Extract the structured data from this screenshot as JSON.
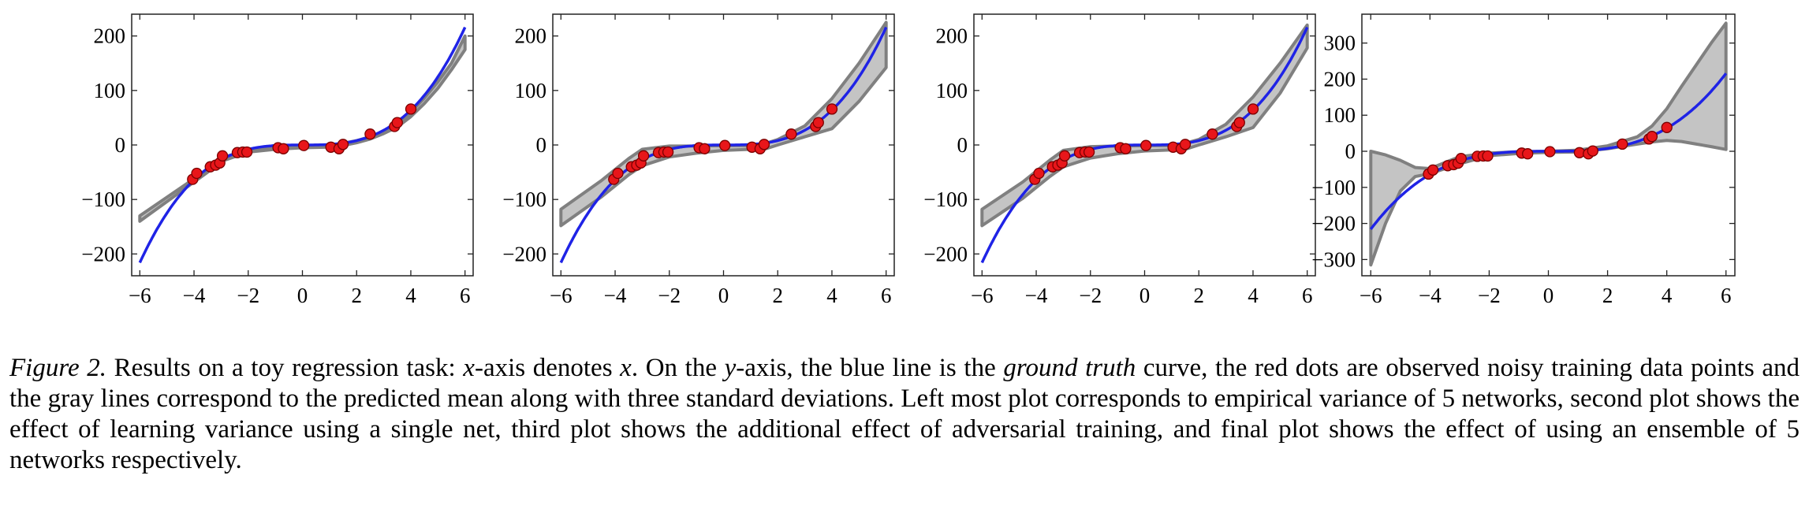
{
  "chart_data": [
    {
      "type": "line",
      "xlim": [
        -6.3,
        6.3
      ],
      "ylim": [
        -240,
        240
      ],
      "x_ticks": [
        -6,
        -4,
        -2,
        0,
        2,
        4,
        6
      ],
      "y_ticks": [
        -200,
        -100,
        0,
        100,
        200
      ],
      "x_tick_labels": [
        "−6",
        "−4",
        "−2",
        "0",
        "2",
        "4",
        "6"
      ],
      "y_tick_labels": [
        "−200",
        "−100",
        "0",
        "100",
        "200"
      ],
      "grid": false,
      "series": [
        {
          "role": "ground-truth",
          "color": "#1f23e6",
          "function": "x^3",
          "x_range": [
            -6,
            6
          ]
        },
        {
          "role": "predicted-mean-band",
          "color": "#808080",
          "fill": "#c4c4c4",
          "x": [
            -6,
            -4,
            -3.5,
            -3,
            -2,
            -1,
            0,
            1,
            1.5,
            2,
            2.5,
            3,
            3.5,
            4,
            4.5,
            5,
            5.5,
            6
          ],
          "upper": [
            -130,
            -62,
            -45,
            -24,
            -9,
            -4,
            -1,
            0,
            3,
            8,
            15,
            25,
            38,
            60,
            86,
            116,
            150,
            200
          ],
          "lower": [
            -140,
            -68,
            -50,
            -30,
            -13,
            -8,
            -5,
            -4,
            -1,
            4,
            11,
            21,
            33,
            52,
            76,
            104,
            138,
            175
          ]
        }
      ],
      "points": [
        [
          -4.05,
          -63
        ],
        [
          -3.9,
          -52
        ],
        [
          -3.4,
          -40
        ],
        [
          -3.2,
          -37
        ],
        [
          -3.05,
          -33
        ],
        [
          -2.95,
          -20
        ],
        [
          -2.4,
          -14
        ],
        [
          -2.2,
          -13
        ],
        [
          -2.05,
          -13
        ],
        [
          -0.9,
          -5
        ],
        [
          -0.7,
          -7
        ],
        [
          0.05,
          -1
        ],
        [
          1.05,
          -4
        ],
        [
          1.35,
          -7
        ],
        [
          1.5,
          1
        ],
        [
          2.5,
          20
        ],
        [
          3.4,
          34
        ],
        [
          3.5,
          41
        ],
        [
          4.0,
          66
        ]
      ]
    },
    {
      "type": "line",
      "xlim": [
        -6.3,
        6.3
      ],
      "ylim": [
        -240,
        240
      ],
      "x_ticks": [
        -6,
        -4,
        -2,
        0,
        2,
        4,
        6
      ],
      "y_ticks": [
        -200,
        -100,
        0,
        100,
        200
      ],
      "x_tick_labels": [
        "−6",
        "−4",
        "−2",
        "0",
        "2",
        "4",
        "6"
      ],
      "y_tick_labels": [
        "−200",
        "−100",
        "0",
        "100",
        "200"
      ],
      "grid": false,
      "series": [
        {
          "role": "ground-truth",
          "color": "#1f23e6",
          "function": "x^3",
          "x_range": [
            -6,
            6
          ]
        },
        {
          "role": "predicted-mean-band",
          "color": "#808080",
          "fill": "#c4c4c4",
          "x": [
            -6,
            -4.5,
            -3.5,
            -3,
            -2,
            -1,
            0,
            1,
            1.5,
            2,
            3,
            4,
            5,
            6
          ],
          "upper": [
            -118,
            -65,
            -25,
            -8,
            -2,
            -2,
            -1,
            -1,
            2,
            10,
            35,
            85,
            150,
            225
          ],
          "lower": [
            -148,
            -95,
            -55,
            -38,
            -22,
            -15,
            -10,
            -8,
            -8,
            0,
            15,
            30,
            80,
            142
          ]
        }
      ],
      "points": [
        [
          -4.05,
          -63
        ],
        [
          -3.9,
          -52
        ],
        [
          -3.4,
          -40
        ],
        [
          -3.2,
          -37
        ],
        [
          -3.05,
          -33
        ],
        [
          -2.95,
          -20
        ],
        [
          -2.4,
          -14
        ],
        [
          -2.2,
          -13
        ],
        [
          -2.05,
          -13
        ],
        [
          -0.9,
          -5
        ],
        [
          -0.7,
          -7
        ],
        [
          0.05,
          -1
        ],
        [
          1.05,
          -4
        ],
        [
          1.35,
          -7
        ],
        [
          1.5,
          1
        ],
        [
          2.5,
          20
        ],
        [
          3.4,
          34
        ],
        [
          3.5,
          41
        ],
        [
          4.0,
          66
        ]
      ]
    },
    {
      "type": "line",
      "xlim": [
        -6.3,
        6.3
      ],
      "ylim": [
        -240,
        240
      ],
      "x_ticks": [
        -6,
        -4,
        -2,
        0,
        2,
        4,
        6
      ],
      "y_ticks": [
        -200,
        -100,
        0,
        100,
        200
      ],
      "x_tick_labels": [
        "−6",
        "−4",
        "−2",
        "0",
        "2",
        "4",
        "6"
      ],
      "y_tick_labels": [
        "−200",
        "−100",
        "0",
        "100",
        "200"
      ],
      "grid": false,
      "series": [
        {
          "role": "ground-truth",
          "color": "#1f23e6",
          "function": "x^3",
          "x_range": [
            -6,
            6
          ]
        },
        {
          "role": "predicted-mean-band",
          "color": "#808080",
          "fill": "#c4c4c4",
          "x": [
            -6,
            -4.5,
            -3.5,
            -3,
            -2,
            -1,
            0,
            1,
            1.5,
            2,
            3,
            4,
            5,
            6
          ],
          "upper": [
            -118,
            -68,
            -28,
            -10,
            -3,
            -2,
            -1,
            -1,
            3,
            10,
            38,
            88,
            150,
            220
          ],
          "lower": [
            -148,
            -98,
            -58,
            -40,
            -24,
            -16,
            -11,
            -9,
            -8,
            0,
            15,
            32,
            95,
            178
          ]
        }
      ],
      "points": [
        [
          -4.05,
          -63
        ],
        [
          -3.9,
          -52
        ],
        [
          -3.4,
          -40
        ],
        [
          -3.2,
          -37
        ],
        [
          -3.05,
          -33
        ],
        [
          -2.95,
          -20
        ],
        [
          -2.4,
          -14
        ],
        [
          -2.2,
          -13
        ],
        [
          -2.05,
          -13
        ],
        [
          -0.9,
          -5
        ],
        [
          -0.7,
          -7
        ],
        [
          0.05,
          -1
        ],
        [
          1.05,
          -4
        ],
        [
          1.35,
          -7
        ],
        [
          1.5,
          1
        ],
        [
          2.5,
          20
        ],
        [
          3.4,
          34
        ],
        [
          3.5,
          41
        ],
        [
          4.0,
          66
        ]
      ]
    },
    {
      "type": "line",
      "xlim": [
        -6.3,
        6.3
      ],
      "ylim": [
        -345,
        380
      ],
      "x_ticks": [
        -6,
        -4,
        -2,
        0,
        2,
        4,
        6
      ],
      "y_ticks": [
        -300,
        -200,
        -100,
        0,
        100,
        200,
        300
      ],
      "x_tick_labels": [
        "−6",
        "−4",
        "−2",
        "0",
        "2",
        "4",
        "6"
      ],
      "y_tick_labels": [
        "−300",
        "−200",
        "−100",
        "0",
        "100",
        "200",
        "300"
      ],
      "grid": false,
      "series": [
        {
          "role": "ground-truth",
          "color": "#1f23e6",
          "function": "x^3",
          "x_range": [
            -6,
            6
          ]
        },
        {
          "role": "predicted-mean-band",
          "color": "#808080",
          "fill": "#c4c4c4",
          "x": [
            -6,
            -5.5,
            -5,
            -4.5,
            -4,
            -3,
            -2,
            -1,
            0,
            1,
            2,
            3,
            3.5,
            4,
            4.5,
            5,
            5.5,
            6
          ],
          "upper": [
            0,
            -10,
            -25,
            -45,
            -48,
            -15,
            -5,
            -1,
            0,
            3,
            15,
            40,
            70,
            118,
            180,
            240,
            300,
            355
          ],
          "lower": [
            -315,
            -200,
            -110,
            -70,
            -62,
            -35,
            -12,
            -6,
            -3,
            -2,
            7,
            20,
            26,
            30,
            27,
            20,
            13,
            5
          ]
        }
      ],
      "points": [
        [
          -4.05,
          -63
        ],
        [
          -3.9,
          -52
        ],
        [
          -3.4,
          -40
        ],
        [
          -3.2,
          -37
        ],
        [
          -3.05,
          -33
        ],
        [
          -2.95,
          -20
        ],
        [
          -2.4,
          -14
        ],
        [
          -2.2,
          -13
        ],
        [
          -2.05,
          -13
        ],
        [
          -0.9,
          -5
        ],
        [
          -0.7,
          -7
        ],
        [
          0.05,
          -1
        ],
        [
          1.05,
          -4
        ],
        [
          1.35,
          -7
        ],
        [
          1.5,
          1
        ],
        [
          2.5,
          20
        ],
        [
          3.4,
          34
        ],
        [
          3.5,
          41
        ],
        [
          4.0,
          66
        ]
      ]
    }
  ],
  "caption": {
    "label": "Figure 2.",
    "t1": " Results on a toy regression task: ",
    "m1": "x",
    "t2": "-axis denotes ",
    "m2": "x",
    "t3": ".  On the ",
    "m3": "y",
    "t4": "-axis, the blue line is the ",
    "em1": "ground truth",
    "t5": " curve, the red dots are observed noisy training data points and the gray lines correspond to the predicted mean along with three standard deviations. Left most plot corresponds to empirical variance of 5 networks, second plot shows the effect of learning variance using a single net, third plot shows the additional effect of adversarial training, and final plot shows the effect of using an ensemble of 5 networks respectively."
  }
}
